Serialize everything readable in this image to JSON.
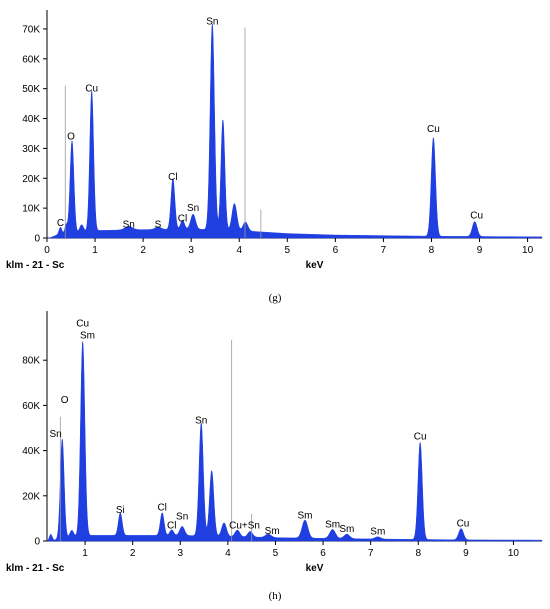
{
  "chart_data": [
    {
      "type": "area",
      "panel_label": "(g)",
      "sample_label": "klm - 21 - Sc",
      "xlabel": "keV",
      "xlim": [
        0,
        10.3
      ],
      "ylim": [
        0,
        75000
      ],
      "xticks": [
        0,
        1,
        2,
        3,
        4,
        5,
        6,
        7,
        8,
        9,
        10
      ],
      "yticks": [
        0,
        10000,
        20000,
        30000,
        40000,
        50000,
        60000,
        70000
      ],
      "yticklabels": [
        "0",
        "10K",
        "20K",
        "30K",
        "40K",
        "50K",
        "60K",
        "70K"
      ],
      "color": "#1f3fe0",
      "peaks": [
        {
          "x": 0.28,
          "y": 2500,
          "w": 0.03
        },
        {
          "x": 0.4,
          "y": 3000,
          "w": 0.03
        },
        {
          "x": 0.52,
          "y": 31000,
          "w": 0.04
        },
        {
          "x": 0.72,
          "y": 2500,
          "w": 0.04
        },
        {
          "x": 0.93,
          "y": 47000,
          "w": 0.04
        },
        {
          "x": 1.7,
          "y": 1200,
          "w": 0.08
        },
        {
          "x": 2.31,
          "y": 900,
          "w": 0.06
        },
        {
          "x": 2.62,
          "y": 17000,
          "w": 0.04
        },
        {
          "x": 2.82,
          "y": 3000,
          "w": 0.04
        },
        {
          "x": 3.04,
          "y": 5000,
          "w": 0.05
        },
        {
          "x": 3.44,
          "y": 69000,
          "w": 0.045
        },
        {
          "x": 3.66,
          "y": 37000,
          "w": 0.04
        },
        {
          "x": 3.9,
          "y": 9000,
          "w": 0.05
        },
        {
          "x": 4.13,
          "y": 3000,
          "w": 0.05
        },
        {
          "x": 8.04,
          "y": 33000,
          "w": 0.045
        },
        {
          "x": 8.9,
          "y": 5000,
          "w": 0.05
        }
      ],
      "background": [
        [
          0.05,
          0
        ],
        [
          0.2,
          1000
        ],
        [
          1.0,
          2500
        ],
        [
          2.0,
          2800
        ],
        [
          3.0,
          3000
        ],
        [
          4.0,
          2500
        ],
        [
          5.0,
          1500
        ],
        [
          6.0,
          1000
        ],
        [
          7.0,
          800
        ],
        [
          8.0,
          600
        ],
        [
          9.0,
          500
        ],
        [
          10.3,
          400
        ]
      ],
      "markers": [
        {
          "x": 0.38,
          "y": 51000
        },
        {
          "x": 4.12,
          "y": 70500
        },
        {
          "x": 4.45,
          "y": 9500
        }
      ],
      "annotations": [
        {
          "text": "C",
          "x": 0.28,
          "y": 4000
        },
        {
          "text": "O",
          "x": 0.5,
          "y": 33000
        },
        {
          "text": "Cu",
          "x": 0.93,
          "y": 49000
        },
        {
          "text": "Sn",
          "x": 1.7,
          "y": 3500
        },
        {
          "text": "S",
          "x": 2.31,
          "y": 3500
        },
        {
          "text": "Cl",
          "x": 2.62,
          "y": 19500
        },
        {
          "text": "Cl",
          "x": 2.82,
          "y": 5500
        },
        {
          "text": "Sn",
          "x": 3.04,
          "y": 9000
        },
        {
          "text": "Sn",
          "x": 3.44,
          "y": 71500
        },
        {
          "text": "Cu",
          "x": 8.04,
          "y": 35500
        },
        {
          "text": "Cu",
          "x": 8.94,
          "y": 6500
        }
      ]
    },
    {
      "type": "area",
      "panel_label": "(h)",
      "sample_label": "klm - 21 - Sc",
      "xlabel": "keV",
      "xlim": [
        0.2,
        10.6
      ],
      "ylim": [
        0,
        100000
      ],
      "xticks": [
        1,
        2,
        3,
        4,
        5,
        6,
        7,
        8,
        9,
        10
      ],
      "yticks": [
        0,
        20000,
        40000,
        60000,
        80000
      ],
      "yticklabels": [
        "0",
        "20K",
        "40K",
        "60K",
        "80K"
      ],
      "color": "#1f3fe0",
      "peaks": [
        {
          "x": 0.28,
          "y": 3000,
          "w": 0.03
        },
        {
          "x": 0.52,
          "y": 44000,
          "w": 0.04
        },
        {
          "x": 0.72,
          "y": 3000,
          "w": 0.04
        },
        {
          "x": 0.95,
          "y": 86000,
          "w": 0.045
        },
        {
          "x": 1.74,
          "y": 10000,
          "w": 0.04
        },
        {
          "x": 2.62,
          "y": 10000,
          "w": 0.04
        },
        {
          "x": 2.82,
          "y": 2500,
          "w": 0.04
        },
        {
          "x": 3.04,
          "y": 4000,
          "w": 0.05
        },
        {
          "x": 3.44,
          "y": 50000,
          "w": 0.045
        },
        {
          "x": 3.66,
          "y": 29000,
          "w": 0.045
        },
        {
          "x": 3.92,
          "y": 6000,
          "w": 0.05
        },
        {
          "x": 4.2,
          "y": 3000,
          "w": 0.05
        },
        {
          "x": 4.47,
          "y": 2500,
          "w": 0.05
        },
        {
          "x": 4.85,
          "y": 1500,
          "w": 0.06
        },
        {
          "x": 5.62,
          "y": 8000,
          "w": 0.06
        },
        {
          "x": 6.2,
          "y": 4000,
          "w": 0.06
        },
        {
          "x": 6.5,
          "y": 2000,
          "w": 0.06
        },
        {
          "x": 7.15,
          "y": 1000,
          "w": 0.06
        },
        {
          "x": 8.04,
          "y": 43000,
          "w": 0.045
        },
        {
          "x": 8.9,
          "y": 5000,
          "w": 0.05
        }
      ],
      "background": [
        [
          0.3,
          0
        ],
        [
          0.45,
          1000
        ],
        [
          1.0,
          2500
        ],
        [
          2.0,
          2500
        ],
        [
          3.0,
          2500
        ],
        [
          4.0,
          2000
        ],
        [
          5.0,
          1500
        ],
        [
          6.0,
          1200
        ],
        [
          7.0,
          900
        ],
        [
          8.0,
          700
        ],
        [
          9.0,
          500
        ],
        [
          10.6,
          400
        ]
      ],
      "markers": [
        {
          "x": 0.48,
          "y": 55000
        },
        {
          "x": 4.08,
          "y": 89000
        },
        {
          "x": 4.5,
          "y": 12000
        }
      ],
      "annotations": [
        {
          "text": "Sn",
          "x": 0.38,
          "y": 46000
        },
        {
          "text": "O",
          "x": 0.57,
          "y": 61000
        },
        {
          "text": "Cu",
          "x": 0.95,
          "y": 95000
        },
        {
          "text": "Sm",
          "x": 1.05,
          "y": 89500
        },
        {
          "text": "Si",
          "x": 1.74,
          "y": 12500
        },
        {
          "text": "Cl",
          "x": 2.62,
          "y": 13500
        },
        {
          "text": "Cl",
          "x": 2.82,
          "y": 5500
        },
        {
          "text": "Sn",
          "x": 3.04,
          "y": 9500
        },
        {
          "text": "Sn",
          "x": 3.44,
          "y": 52000
        },
        {
          "text": "Cu+Sn",
          "x": 4.35,
          "y": 5500
        },
        {
          "text": "Sm",
          "x": 4.93,
          "y": 3000
        },
        {
          "text": "Sm",
          "x": 5.62,
          "y": 10000
        },
        {
          "text": "Sm",
          "x": 6.2,
          "y": 6000
        },
        {
          "text": "Sm",
          "x": 6.5,
          "y": 4000
        },
        {
          "text": "Sm",
          "x": 7.15,
          "y": 2800
        },
        {
          "text": "Cu",
          "x": 8.04,
          "y": 45000
        },
        {
          "text": "Cu",
          "x": 8.94,
          "y": 6500
        }
      ]
    }
  ]
}
